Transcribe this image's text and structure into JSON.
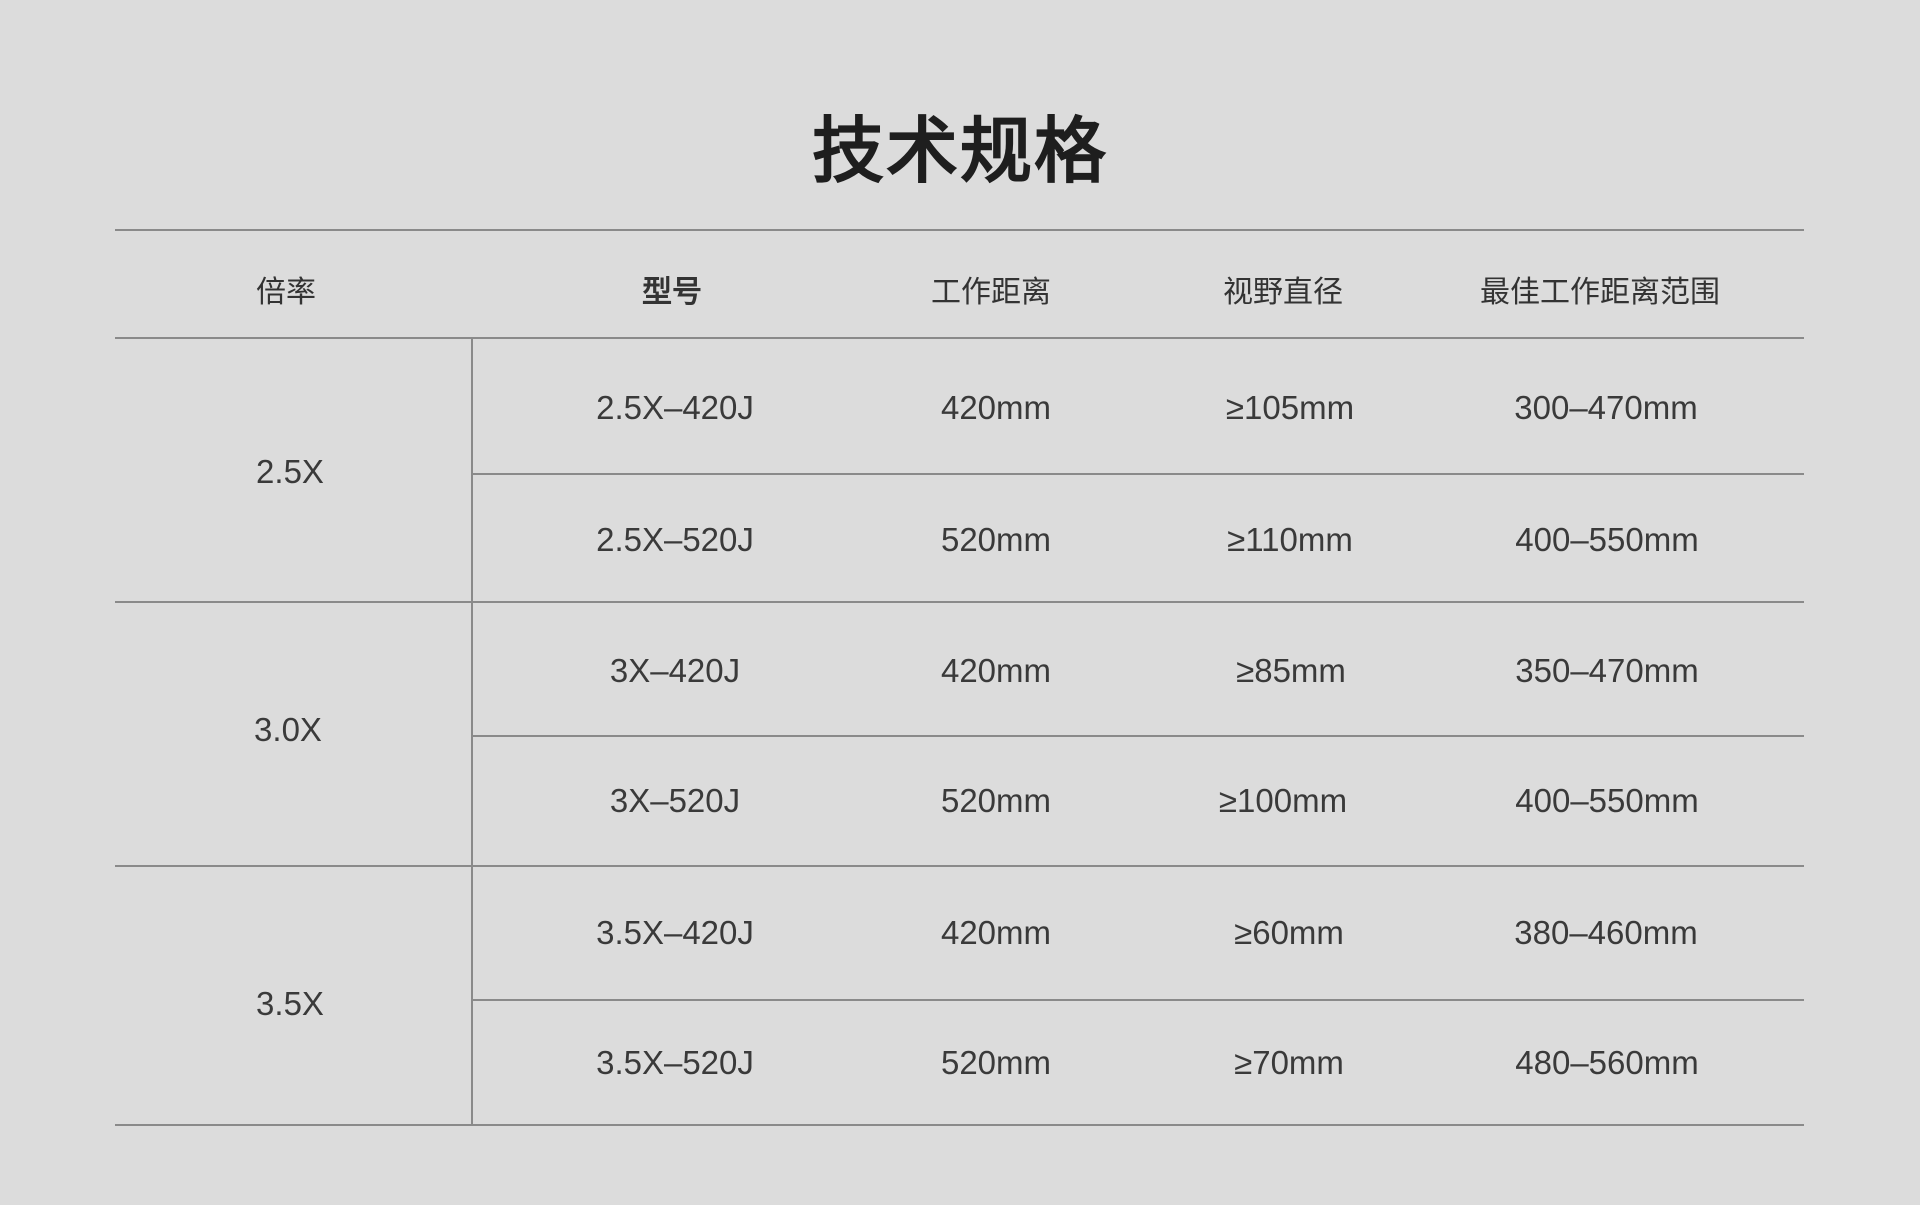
{
  "title": "技术规格",
  "table": {
    "headers": [
      "倍率",
      "型号",
      "工作距离",
      "视野直径",
      "最佳工作距离范围"
    ],
    "groups": [
      {
        "magnification": "2.5X",
        "rows": [
          {
            "model": "2.5X–420J",
            "working_distance": "420mm",
            "field_diameter": "≥105mm",
            "best_range": "300–470mm"
          },
          {
            "model": "2.5X–520J",
            "working_distance": "520mm",
            "field_diameter": "≥110mm",
            "best_range": "400–550mm"
          }
        ]
      },
      {
        "magnification": "3.0X",
        "rows": [
          {
            "model": "3X–420J",
            "working_distance": "420mm",
            "field_diameter": "≥85mm",
            "best_range": "350–470mm"
          },
          {
            "model": "3X–520J",
            "working_distance": "520mm",
            "field_diameter": "≥100mm",
            "best_range": "400–550mm"
          }
        ]
      },
      {
        "magnification": "3.5X",
        "rows": [
          {
            "model": "3.5X–420J",
            "working_distance": "420mm",
            "field_diameter": "≥60mm",
            "best_range": "380–460mm"
          },
          {
            "model": "3.5X–520J",
            "working_distance": "520mm",
            "field_diameter": "≥70mm",
            "best_range": "480–560mm"
          }
        ]
      }
    ]
  }
}
